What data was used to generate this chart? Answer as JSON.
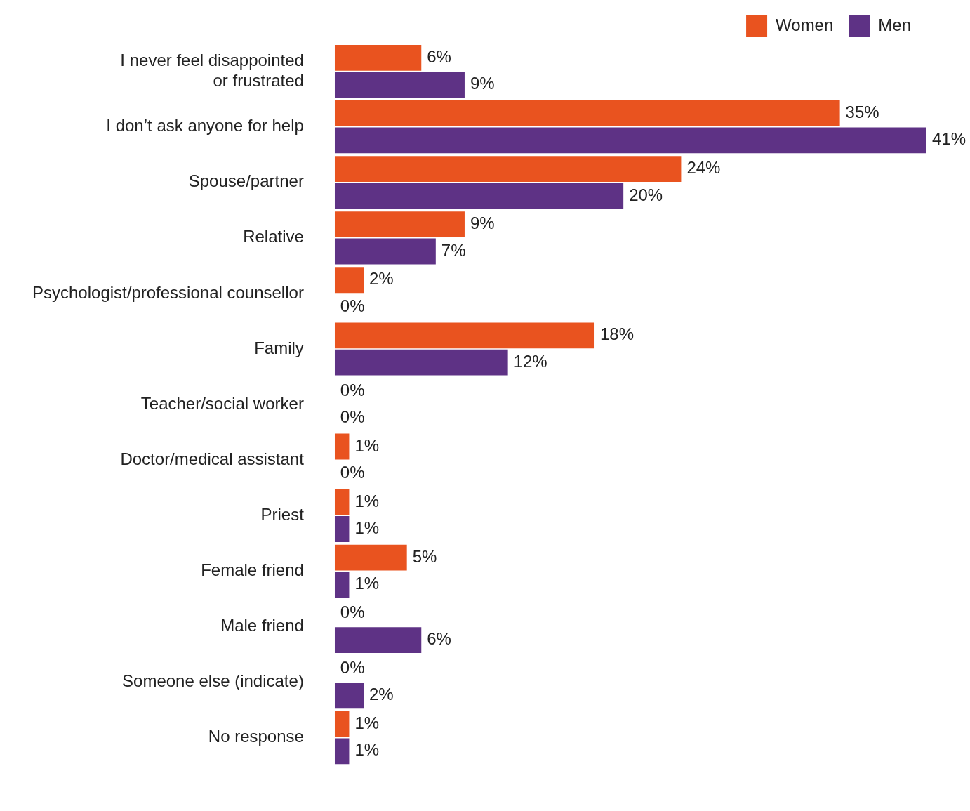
{
  "chart_data": {
    "type": "bar",
    "orientation": "horizontal",
    "categories": [
      "I never feel disappointed\nor frustrated",
      "I don’t ask anyone for help",
      "Spouse/partner",
      "Relative",
      "Psychologist/professional counsellor",
      "Family",
      "Teacher/social worker",
      "Doctor/medical assistant",
      "Priest",
      "Female friend",
      "Male friend",
      "Someone else (indicate)",
      "No response"
    ],
    "series": [
      {
        "name": "Women",
        "color": "#e9531f",
        "values": [
          6,
          35,
          24,
          9,
          2,
          18,
          0,
          1,
          1,
          5,
          0,
          0,
          1
        ],
        "value_labels": [
          "6%",
          "35%",
          "24%",
          "9%",
          "2%",
          "18%",
          "0%",
          "1%",
          "1%",
          "5%",
          "0%",
          "0%",
          "1%"
        ]
      },
      {
        "name": "Men",
        "color": "#5e3285",
        "values": [
          9,
          41,
          20,
          7,
          0,
          12,
          0,
          0,
          1,
          1,
          6,
          2,
          1
        ],
        "value_labels": [
          "9%",
          "41%",
          "20%",
          "7%",
          "0%",
          "12%",
          "0%",
          "0%",
          "1%",
          "1%",
          "6%",
          "2%",
          "1%"
        ]
      }
    ],
    "xlim": [
      0,
      41
    ],
    "tick_labels": "y",
    "legend": "top right"
  }
}
